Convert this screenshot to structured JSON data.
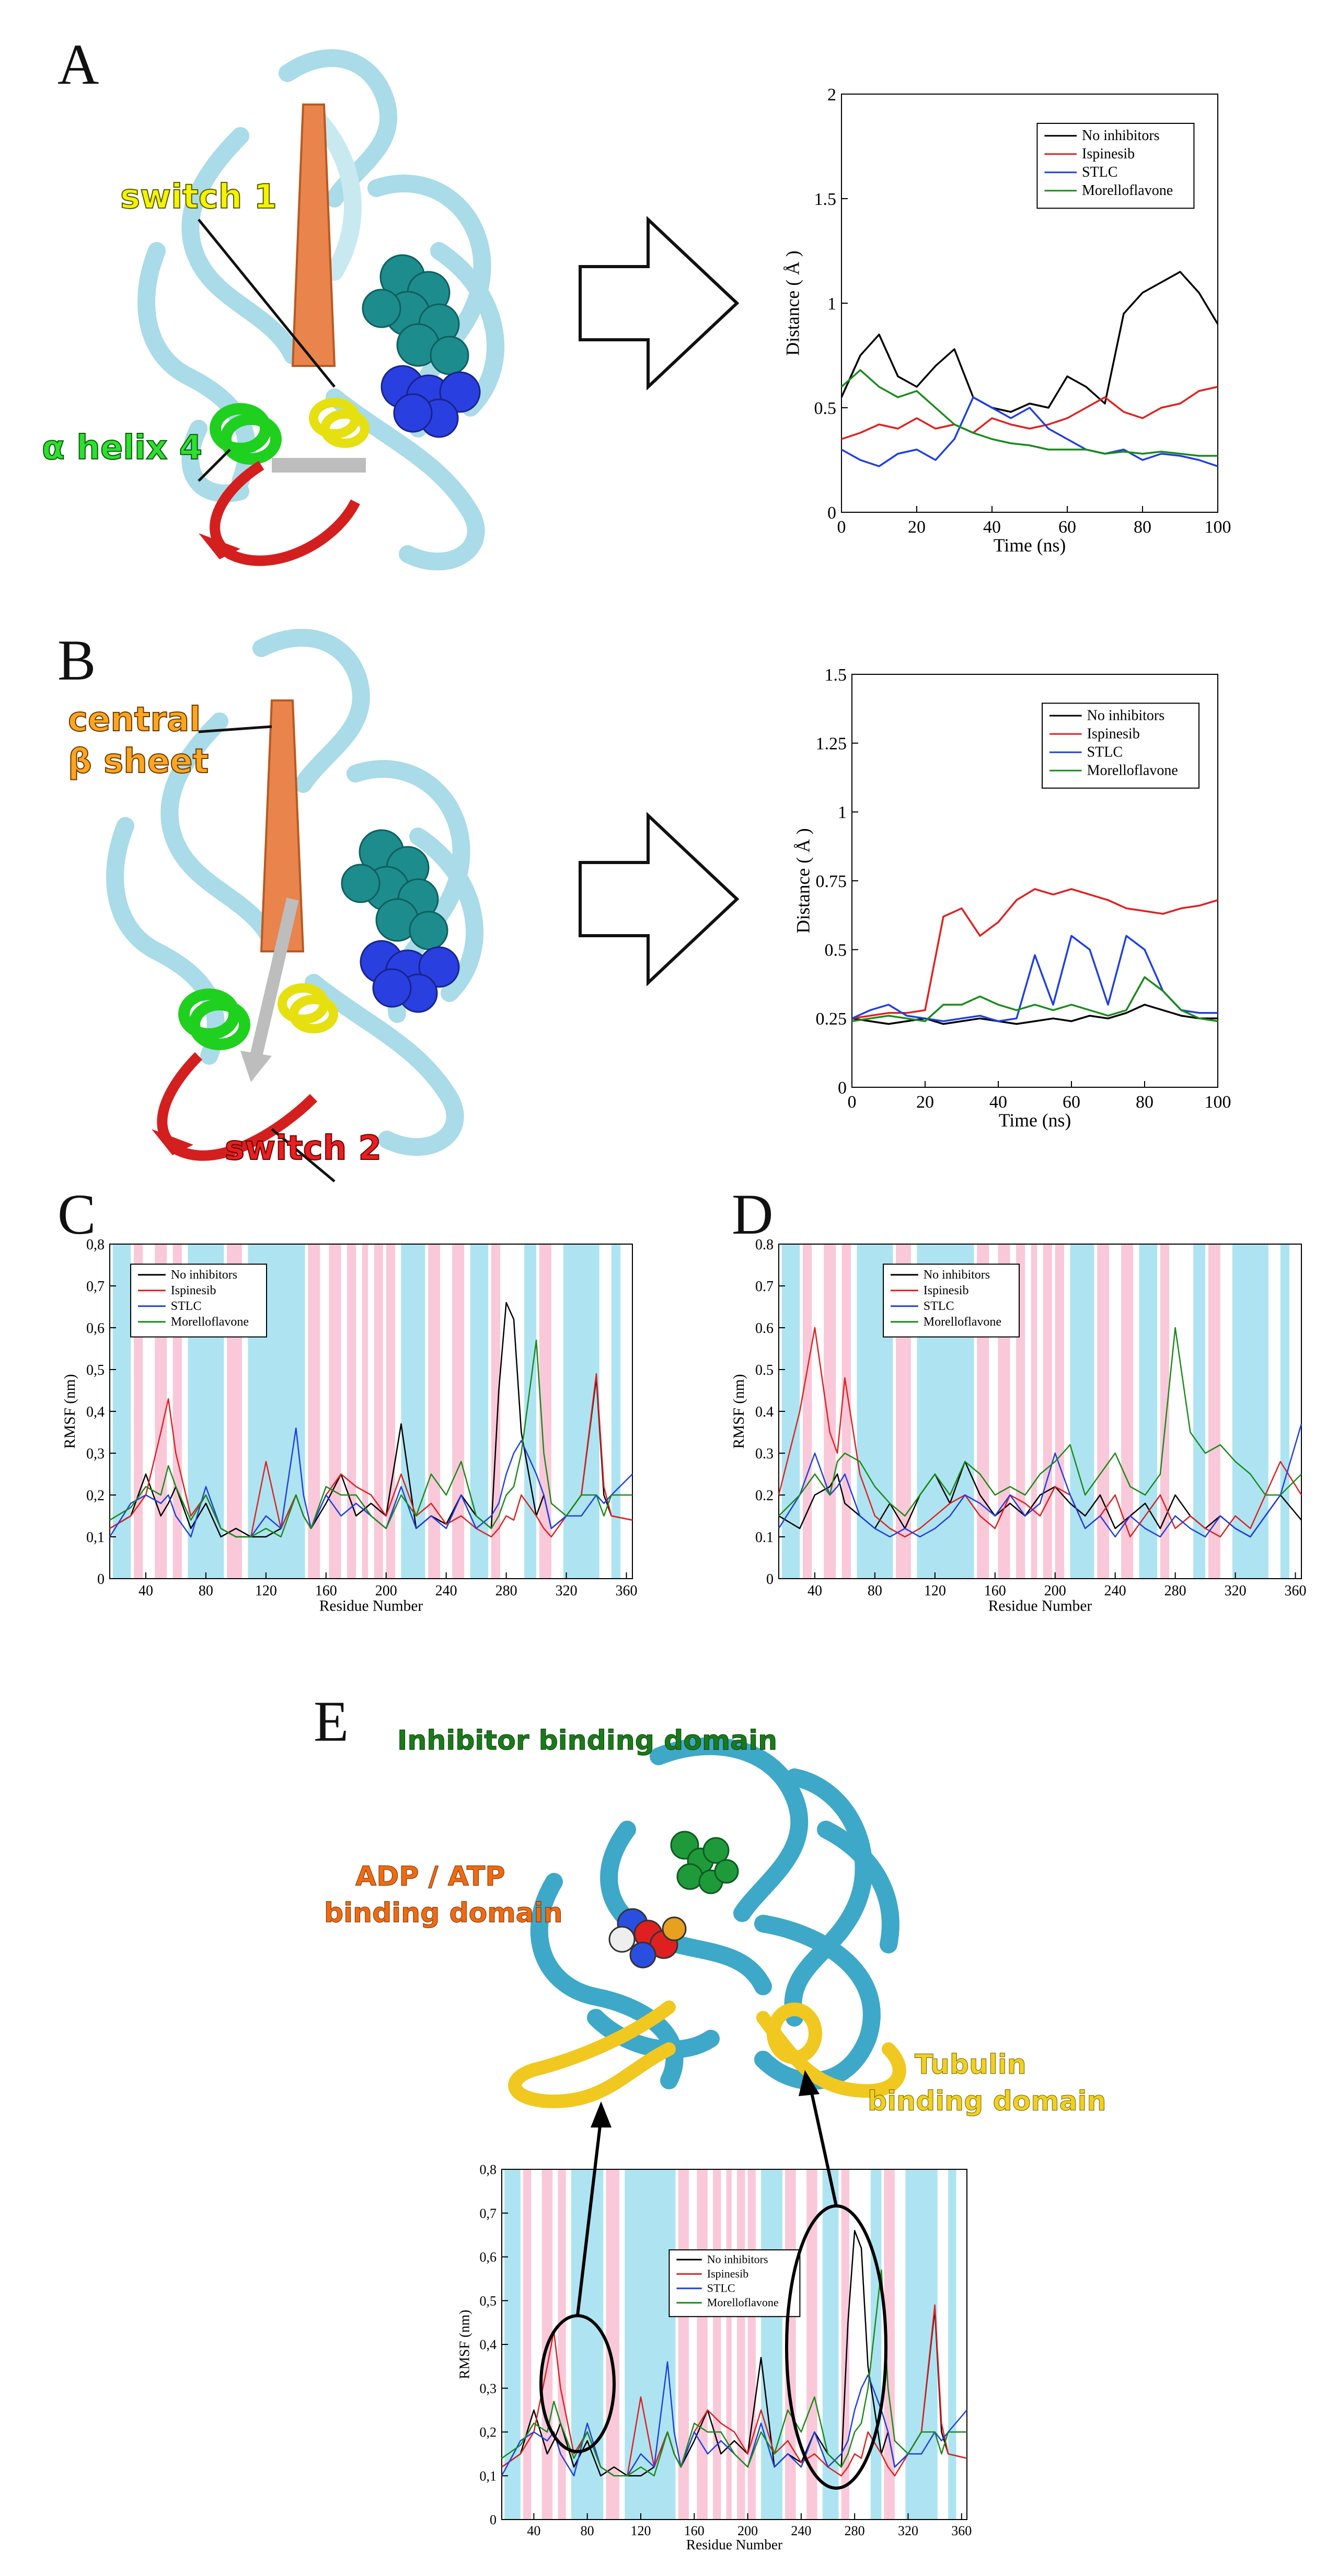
{
  "panels": {
    "A": {
      "letter": "A",
      "labels": {
        "switch1": "switch 1",
        "helix4": "α helix 4"
      }
    },
    "B": {
      "letter": "B",
      "labels": {
        "central1": "central",
        "central2": "β sheet",
        "switch2": "switch 2"
      }
    },
    "C": {
      "letter": "C"
    },
    "D": {
      "letter": "D"
    },
    "E": {
      "letter": "E",
      "labels": {
        "inhibitor": "Inhibitor binding domain",
        "adp1": "ADP / ATP",
        "adp2": "binding domain",
        "tub1": "Tubulin",
        "tub2": "binding domain"
      }
    }
  },
  "colors": {
    "no_inhibitors": "#000000",
    "ispinesib": "#e02020",
    "stlc": "#1f3fe0",
    "morelloflavone": "#1a8a1a",
    "helix_band": "#aee4f2",
    "strand_band": "#f9c9d9",
    "protein": "#a9dbe8",
    "protein_E": "#3ea8c8"
  },
  "legend": [
    "No inhibitors",
    "Ispinesib",
    "STLC",
    "Morelloflavone"
  ],
  "chart_data": [
    {
      "id": "A",
      "type": "line",
      "xlabel": "Time (ns)",
      "ylabel": "Distance ( Å )",
      "xlim": [
        0,
        100
      ],
      "ylim": [
        0,
        2
      ],
      "xticks": [
        "0",
        "20",
        "40",
        "60",
        "80",
        "100"
      ],
      "yticks": [
        "0",
        "0.5",
        "1",
        "1.5",
        "2"
      ],
      "legend_position": "top-right",
      "x": [
        0,
        5,
        10,
        15,
        20,
        25,
        30,
        35,
        40,
        45,
        50,
        55,
        60,
        65,
        70,
        75,
        80,
        85,
        90,
        95,
        100
      ],
      "series": [
        {
          "name": "No inhibitors",
          "values": [
            0.55,
            0.75,
            0.85,
            0.65,
            0.6,
            0.7,
            0.78,
            0.55,
            0.5,
            0.48,
            0.52,
            0.5,
            0.65,
            0.6,
            0.52,
            0.95,
            1.05,
            1.1,
            1.15,
            1.05,
            0.9
          ]
        },
        {
          "name": "Ispinesib",
          "values": [
            0.35,
            0.38,
            0.42,
            0.4,
            0.45,
            0.4,
            0.42,
            0.38,
            0.45,
            0.42,
            0.4,
            0.42,
            0.45,
            0.5,
            0.55,
            0.48,
            0.45,
            0.5,
            0.52,
            0.58,
            0.6
          ]
        },
        {
          "name": "STLC",
          "values": [
            0.3,
            0.25,
            0.22,
            0.28,
            0.3,
            0.25,
            0.35,
            0.55,
            0.5,
            0.45,
            0.5,
            0.4,
            0.35,
            0.3,
            0.28,
            0.3,
            0.25,
            0.28,
            0.27,
            0.25,
            0.22
          ]
        },
        {
          "name": "Morelloflavone",
          "values": [
            0.6,
            0.68,
            0.6,
            0.55,
            0.58,
            0.5,
            0.42,
            0.38,
            0.35,
            0.33,
            0.32,
            0.3,
            0.3,
            0.3,
            0.28,
            0.29,
            0.28,
            0.29,
            0.28,
            0.27,
            0.27
          ]
        }
      ]
    },
    {
      "id": "B",
      "type": "line",
      "xlabel": "Time (ns)",
      "ylabel": "Distance ( Å )",
      "xlim": [
        0,
        100
      ],
      "ylim": [
        0,
        1.5
      ],
      "xticks": [
        "0",
        "20",
        "40",
        "60",
        "80",
        "100"
      ],
      "yticks": [
        "0",
        "0.25",
        "0.5",
        "0.75",
        "1",
        "1.25",
        "1.5"
      ],
      "legend_position": "top-right",
      "x": [
        0,
        5,
        10,
        15,
        20,
        25,
        30,
        35,
        40,
        45,
        50,
        55,
        60,
        65,
        70,
        75,
        80,
        85,
        90,
        95,
        100
      ],
      "series": [
        {
          "name": "No inhibitors",
          "values": [
            0.25,
            0.24,
            0.23,
            0.24,
            0.25,
            0.23,
            0.24,
            0.25,
            0.24,
            0.23,
            0.24,
            0.25,
            0.24,
            0.26,
            0.25,
            0.27,
            0.3,
            0.28,
            0.26,
            0.25,
            0.25
          ]
        },
        {
          "name": "Ispinesib",
          "values": [
            0.25,
            0.26,
            0.27,
            0.27,
            0.28,
            0.62,
            0.65,
            0.55,
            0.6,
            0.68,
            0.72,
            0.7,
            0.72,
            0.7,
            0.68,
            0.65,
            0.64,
            0.63,
            0.65,
            0.66,
            0.68
          ]
        },
        {
          "name": "STLC",
          "values": [
            0.25,
            0.28,
            0.3,
            0.26,
            0.25,
            0.24,
            0.25,
            0.26,
            0.24,
            0.25,
            0.48,
            0.3,
            0.55,
            0.5,
            0.3,
            0.55,
            0.5,
            0.35,
            0.28,
            0.27,
            0.27
          ]
        },
        {
          "name": "Morelloflavone",
          "values": [
            0.24,
            0.25,
            0.26,
            0.25,
            0.24,
            0.3,
            0.3,
            0.33,
            0.3,
            0.28,
            0.3,
            0.28,
            0.3,
            0.28,
            0.26,
            0.28,
            0.4,
            0.35,
            0.28,
            0.25,
            0.24
          ]
        }
      ]
    },
    {
      "id": "C",
      "type": "line",
      "xlabel": "Residue Number",
      "ylabel": "RMSF (nm)",
      "xlim": [
        16,
        364
      ],
      "ylim": [
        0,
        0.8
      ],
      "xticks": [
        "40",
        "80",
        "120",
        "160",
        "200",
        "240",
        "280",
        "320",
        "360"
      ],
      "yticks": [
        "0",
        "0,1",
        "0,2",
        "0,3",
        "0,4",
        "0,5",
        "0,6",
        "0,7",
        "0,8"
      ],
      "legend_position": "top-left",
      "x": [
        16,
        30,
        40,
        50,
        55,
        60,
        70,
        80,
        90,
        100,
        110,
        120,
        130,
        140,
        145,
        150,
        160,
        170,
        180,
        190,
        200,
        210,
        220,
        230,
        240,
        250,
        260,
        270,
        275,
        280,
        285,
        290,
        300,
        305,
        310,
        320,
        330,
        340,
        345,
        350,
        364
      ],
      "series": [
        {
          "name": "No inhibitors",
          "values": [
            0.12,
            0.15,
            0.25,
            0.15,
            0.18,
            0.22,
            0.12,
            0.18,
            0.1,
            0.12,
            0.1,
            0.1,
            0.12,
            0.2,
            0.15,
            0.12,
            0.18,
            0.25,
            0.15,
            0.18,
            0.15,
            0.37,
            0.12,
            0.15,
            0.13,
            0.2,
            0.15,
            0.12,
            0.45,
            0.66,
            0.62,
            0.35,
            0.15,
            0.2,
            0.12,
            0.15,
            0.2,
            0.48,
            0.2,
            0.15,
            0.14
          ]
        },
        {
          "name": "Ispinesib",
          "values": [
            0.12,
            0.15,
            0.2,
            0.35,
            0.43,
            0.3,
            0.15,
            0.2,
            0.12,
            0.1,
            0.1,
            0.28,
            0.12,
            0.2,
            0.15,
            0.12,
            0.2,
            0.25,
            0.22,
            0.2,
            0.15,
            0.25,
            0.15,
            0.18,
            0.13,
            0.15,
            0.12,
            0.1,
            0.12,
            0.15,
            0.14,
            0.2,
            0.15,
            0.12,
            0.1,
            0.15,
            0.2,
            0.49,
            0.22,
            0.15,
            0.14
          ]
        },
        {
          "name": "STLC",
          "values": [
            0.1,
            0.18,
            0.2,
            0.18,
            0.2,
            0.15,
            0.1,
            0.22,
            0.12,
            0.1,
            0.1,
            0.15,
            0.12,
            0.36,
            0.2,
            0.12,
            0.2,
            0.15,
            0.18,
            0.15,
            0.12,
            0.22,
            0.12,
            0.15,
            0.12,
            0.2,
            0.12,
            0.15,
            0.18,
            0.25,
            0.3,
            0.33,
            0.25,
            0.2,
            0.12,
            0.15,
            0.15,
            0.2,
            0.18,
            0.2,
            0.25
          ]
        },
        {
          "name": "Morelloflavone",
          "values": [
            0.14,
            0.17,
            0.22,
            0.2,
            0.27,
            0.22,
            0.14,
            0.2,
            0.12,
            0.1,
            0.1,
            0.12,
            0.1,
            0.2,
            0.15,
            0.12,
            0.22,
            0.2,
            0.2,
            0.15,
            0.12,
            0.2,
            0.15,
            0.25,
            0.2,
            0.28,
            0.15,
            0.12,
            0.15,
            0.2,
            0.22,
            0.3,
            0.57,
            0.3,
            0.18,
            0.15,
            0.2,
            0.2,
            0.15,
            0.2,
            0.2
          ]
        }
      ]
    },
    {
      "id": "D",
      "type": "line",
      "xlabel": "Residue Number",
      "ylabel": "RMSF (nm)",
      "xlim": [
        16,
        364
      ],
      "ylim": [
        0,
        0.8
      ],
      "xticks": [
        "40",
        "80",
        "120",
        "160",
        "200",
        "240",
        "280",
        "320",
        "360"
      ],
      "yticks": [
        "0",
        "0.1",
        "0.2",
        "0.3",
        "0.4",
        "0.5",
        "0.6",
        "0.7",
        "0.8"
      ],
      "legend_position": "top-left",
      "x": [
        16,
        30,
        40,
        50,
        55,
        60,
        70,
        80,
        90,
        100,
        110,
        120,
        130,
        140,
        150,
        160,
        170,
        180,
        190,
        200,
        210,
        220,
        230,
        240,
        250,
        260,
        270,
        280,
        290,
        300,
        310,
        320,
        330,
        340,
        350,
        364
      ],
      "series": [
        {
          "name": "No inhibitors",
          "values": [
            0.15,
            0.12,
            0.2,
            0.22,
            0.25,
            0.18,
            0.15,
            0.12,
            0.18,
            0.12,
            0.2,
            0.25,
            0.18,
            0.28,
            0.2,
            0.15,
            0.18,
            0.15,
            0.2,
            0.22,
            0.18,
            0.15,
            0.2,
            0.12,
            0.15,
            0.18,
            0.12,
            0.2,
            0.15,
            0.12,
            0.15,
            0.12,
            0.1,
            0.15,
            0.2,
            0.14
          ]
        },
        {
          "name": "Ispinesib",
          "values": [
            0.2,
            0.4,
            0.6,
            0.35,
            0.3,
            0.48,
            0.25,
            0.15,
            0.12,
            0.1,
            0.12,
            0.15,
            0.18,
            0.2,
            0.15,
            0.12,
            0.2,
            0.18,
            0.15,
            0.22,
            0.2,
            0.12,
            0.15,
            0.2,
            0.1,
            0.15,
            0.2,
            0.12,
            0.15,
            0.12,
            0.1,
            0.15,
            0.12,
            0.2,
            0.28,
            0.2
          ]
        },
        {
          "name": "STLC",
          "values": [
            0.12,
            0.2,
            0.3,
            0.2,
            0.22,
            0.25,
            0.15,
            0.12,
            0.1,
            0.12,
            0.1,
            0.12,
            0.15,
            0.2,
            0.18,
            0.15,
            0.2,
            0.15,
            0.18,
            0.3,
            0.2,
            0.12,
            0.15,
            0.1,
            0.15,
            0.12,
            0.1,
            0.15,
            0.12,
            0.1,
            0.15,
            0.12,
            0.1,
            0.15,
            0.2,
            0.37
          ]
        },
        {
          "name": "Morelloflavone",
          "values": [
            0.15,
            0.2,
            0.25,
            0.2,
            0.28,
            0.3,
            0.28,
            0.22,
            0.18,
            0.15,
            0.2,
            0.25,
            0.2,
            0.28,
            0.25,
            0.2,
            0.22,
            0.2,
            0.25,
            0.28,
            0.32,
            0.2,
            0.25,
            0.3,
            0.22,
            0.2,
            0.25,
            0.6,
            0.35,
            0.3,
            0.32,
            0.28,
            0.25,
            0.2,
            0.2,
            0.25
          ]
        }
      ]
    },
    {
      "id": "E",
      "type": "line",
      "xlabel": "Residue Number",
      "ylabel": "RMSF (nm)",
      "xlim": [
        16,
        364
      ],
      "ylim": [
        0,
        0.8
      ],
      "xticks": [
        "40",
        "80",
        "120",
        "160",
        "200",
        "240",
        "280",
        "320",
        "360"
      ],
      "yticks": [
        "0",
        "0,1",
        "0,2",
        "0,3",
        "0,4",
        "0,5",
        "0,6",
        "0,7",
        "0,8"
      ],
      "legend_position": "center",
      "x": [
        16,
        30,
        40,
        50,
        55,
        60,
        70,
        80,
        90,
        100,
        110,
        120,
        130,
        140,
        145,
        150,
        160,
        170,
        180,
        190,
        200,
        210,
        220,
        230,
        240,
        250,
        260,
        270,
        275,
        280,
        285,
        290,
        300,
        305,
        310,
        320,
        330,
        340,
        345,
        350,
        364
      ],
      "series": [
        {
          "name": "No inhibitors",
          "values": [
            0.12,
            0.15,
            0.25,
            0.15,
            0.18,
            0.22,
            0.12,
            0.18,
            0.1,
            0.12,
            0.1,
            0.1,
            0.12,
            0.2,
            0.15,
            0.12,
            0.18,
            0.25,
            0.15,
            0.18,
            0.15,
            0.37,
            0.12,
            0.15,
            0.13,
            0.2,
            0.15,
            0.12,
            0.45,
            0.66,
            0.62,
            0.35,
            0.15,
            0.2,
            0.12,
            0.15,
            0.2,
            0.48,
            0.2,
            0.15,
            0.14
          ]
        },
        {
          "name": "Ispinesib",
          "values": [
            0.12,
            0.15,
            0.2,
            0.35,
            0.43,
            0.3,
            0.15,
            0.2,
            0.12,
            0.1,
            0.1,
            0.28,
            0.12,
            0.2,
            0.15,
            0.12,
            0.2,
            0.25,
            0.22,
            0.2,
            0.15,
            0.25,
            0.15,
            0.18,
            0.13,
            0.15,
            0.12,
            0.1,
            0.12,
            0.15,
            0.14,
            0.2,
            0.15,
            0.12,
            0.1,
            0.15,
            0.2,
            0.49,
            0.22,
            0.15,
            0.14
          ]
        },
        {
          "name": "STLC",
          "values": [
            0.1,
            0.18,
            0.2,
            0.18,
            0.2,
            0.15,
            0.1,
            0.22,
            0.12,
            0.1,
            0.1,
            0.15,
            0.12,
            0.36,
            0.2,
            0.12,
            0.2,
            0.15,
            0.18,
            0.15,
            0.12,
            0.22,
            0.12,
            0.15,
            0.12,
            0.2,
            0.12,
            0.15,
            0.18,
            0.25,
            0.3,
            0.33,
            0.25,
            0.2,
            0.12,
            0.15,
            0.15,
            0.2,
            0.18,
            0.2,
            0.25
          ]
        },
        {
          "name": "Morelloflavone",
          "values": [
            0.14,
            0.17,
            0.22,
            0.2,
            0.27,
            0.22,
            0.14,
            0.2,
            0.12,
            0.1,
            0.1,
            0.12,
            0.1,
            0.2,
            0.15,
            0.12,
            0.22,
            0.2,
            0.2,
            0.15,
            0.12,
            0.2,
            0.15,
            0.25,
            0.2,
            0.28,
            0.15,
            0.12,
            0.15,
            0.2,
            0.22,
            0.3,
            0.57,
            0.3,
            0.18,
            0.15,
            0.2,
            0.2,
            0.15,
            0.2,
            0.2
          ]
        }
      ]
    }
  ]
}
